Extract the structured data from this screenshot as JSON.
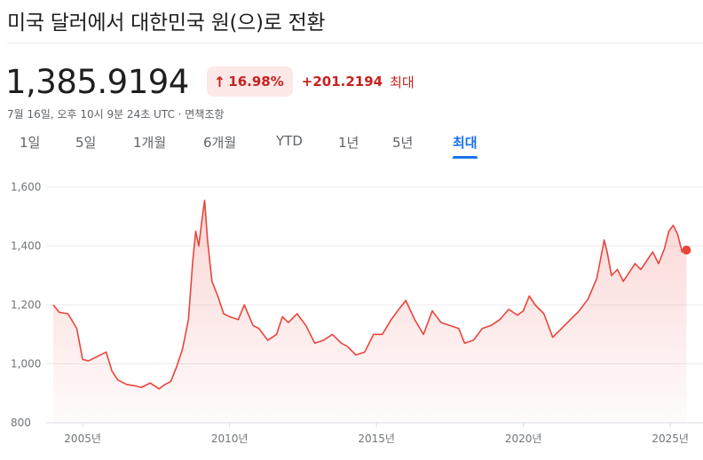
{
  "header": {
    "title": "미국 달러에서 대한민국 원(으)로 전환"
  },
  "quote": {
    "price": "1,385.9194",
    "change_percent": "16.98%",
    "change_arrow": "↑",
    "change_value": "+201.2194",
    "change_period": "최대",
    "timestamp": "7월 16일, 오후 10시 9분 24초 UTC · 면책조항"
  },
  "tabs": [
    {
      "label": "1일",
      "active": false
    },
    {
      "label": "5일",
      "active": false
    },
    {
      "label": "1개월",
      "active": false
    },
    {
      "label": "6개월",
      "active": false
    },
    {
      "label": "YTD",
      "active": false
    },
    {
      "label": "1년",
      "active": false
    },
    {
      "label": "5년",
      "active": false
    },
    {
      "label": "최대",
      "active": true
    }
  ],
  "colors": {
    "line": "#e8453c",
    "accent": "#1a73e8",
    "negative": "#c5221f"
  },
  "chart_data": {
    "type": "area",
    "ylim": [
      800,
      1600
    ],
    "yticks": [
      "800",
      "1,000",
      "1,200",
      "1,400",
      "1,600"
    ],
    "xticks": [
      "2005년",
      "2010년",
      "2015년",
      "2020년",
      "2025년"
    ],
    "xtick_values": [
      2005,
      2010,
      2015,
      2020,
      2025
    ],
    "xlim": [
      2004.0,
      2025.6
    ],
    "grid": true,
    "series": [
      {
        "x": [
          2004.0,
          2004.2,
          2004.5,
          2004.8,
          2005.0,
          2005.2,
          2005.5,
          2005.8,
          2006.0,
          2006.2,
          2006.5,
          2006.8,
          2007.0,
          2007.3,
          2007.6,
          2007.8,
          2008.0,
          2008.2,
          2008.4,
          2008.6,
          2008.75,
          2008.85,
          2008.95,
          2009.05,
          2009.15,
          2009.25,
          2009.4,
          2009.6,
          2009.8,
          2010.0,
          2010.3,
          2010.5,
          2010.8,
          2011.0,
          2011.3,
          2011.6,
          2011.8,
          2012.0,
          2012.3,
          2012.6,
          2012.9,
          2013.2,
          2013.5,
          2013.8,
          2014.0,
          2014.3,
          2014.6,
          2014.9,
          2015.2,
          2015.5,
          2015.8,
          2016.0,
          2016.3,
          2016.6,
          2016.9,
          2017.2,
          2017.5,
          2017.8,
          2018.0,
          2018.3,
          2018.6,
          2018.9,
          2019.2,
          2019.5,
          2019.8,
          2020.0,
          2020.2,
          2020.4,
          2020.7,
          2021.0,
          2021.3,
          2021.6,
          2021.9,
          2022.2,
          2022.5,
          2022.75,
          2022.85,
          2023.0,
          2023.2,
          2023.4,
          2023.6,
          2023.8,
          2024.0,
          2024.2,
          2024.4,
          2024.6,
          2024.8,
          2024.95,
          2025.1,
          2025.25,
          2025.4,
          2025.55
        ],
        "y": [
          1200,
          1175,
          1170,
          1120,
          1015,
          1010,
          1025,
          1040,
          975,
          945,
          930,
          925,
          920,
          935,
          915,
          930,
          940,
          990,
          1050,
          1150,
          1350,
          1450,
          1400,
          1480,
          1555,
          1420,
          1280,
          1230,
          1170,
          1160,
          1150,
          1200,
          1130,
          1120,
          1080,
          1100,
          1160,
          1140,
          1170,
          1130,
          1070,
          1080,
          1100,
          1070,
          1060,
          1030,
          1040,
          1100,
          1100,
          1150,
          1190,
          1215,
          1150,
          1100,
          1180,
          1140,
          1130,
          1120,
          1070,
          1080,
          1120,
          1130,
          1150,
          1185,
          1165,
          1180,
          1230,
          1200,
          1170,
          1090,
          1120,
          1150,
          1180,
          1220,
          1290,
          1420,
          1380,
          1300,
          1320,
          1280,
          1310,
          1340,
          1320,
          1350,
          1380,
          1340,
          1390,
          1450,
          1470,
          1440,
          1380,
          1386
        ]
      }
    ]
  }
}
